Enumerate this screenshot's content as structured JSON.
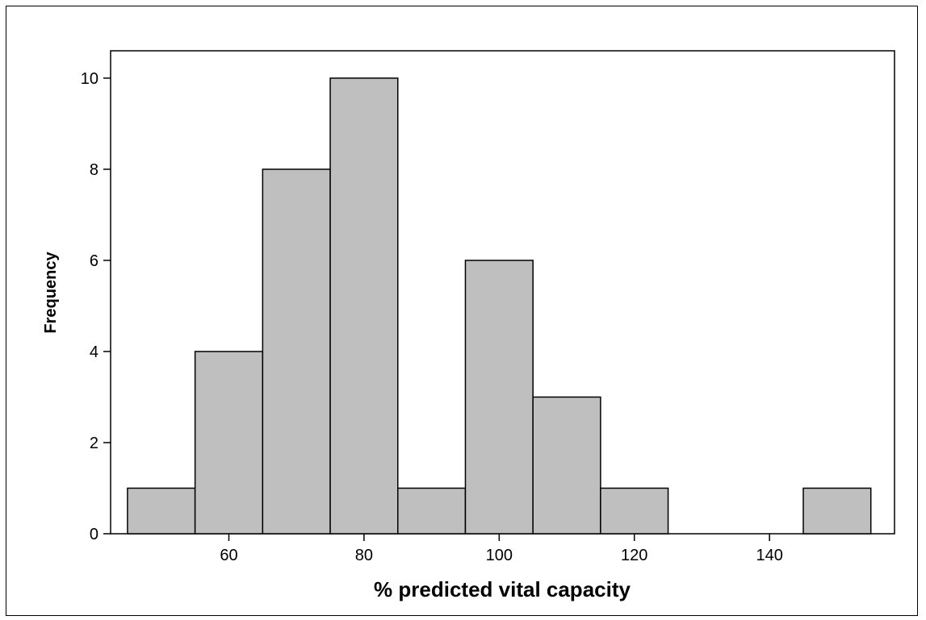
{
  "chart_data": {
    "type": "bar",
    "title": "",
    "xlabel": "% predicted vital capacity",
    "ylabel": "Frequency",
    "bin_width": 10,
    "bins": [
      {
        "start": 45,
        "end": 55,
        "count": 1
      },
      {
        "start": 55,
        "end": 65,
        "count": 4
      },
      {
        "start": 65,
        "end": 75,
        "count": 8
      },
      {
        "start": 75,
        "end": 85,
        "count": 10
      },
      {
        "start": 85,
        "end": 95,
        "count": 1
      },
      {
        "start": 95,
        "end": 105,
        "count": 6
      },
      {
        "start": 105,
        "end": 115,
        "count": 3
      },
      {
        "start": 115,
        "end": 125,
        "count": 1
      },
      {
        "start": 125,
        "end": 135,
        "count": 0
      },
      {
        "start": 135,
        "end": 145,
        "count": 0
      },
      {
        "start": 145,
        "end": 155,
        "count": 1
      }
    ],
    "xlim": [
      42.5,
      158.5
    ],
    "ylim": [
      0,
      10.6
    ],
    "x_ticks": [
      60,
      80,
      100,
      120,
      140
    ],
    "y_ticks": [
      0,
      2,
      4,
      6,
      8,
      10
    ],
    "grid": false,
    "colors": {
      "bar_fill": "#bfbfbf",
      "bar_stroke": "#000000"
    }
  }
}
